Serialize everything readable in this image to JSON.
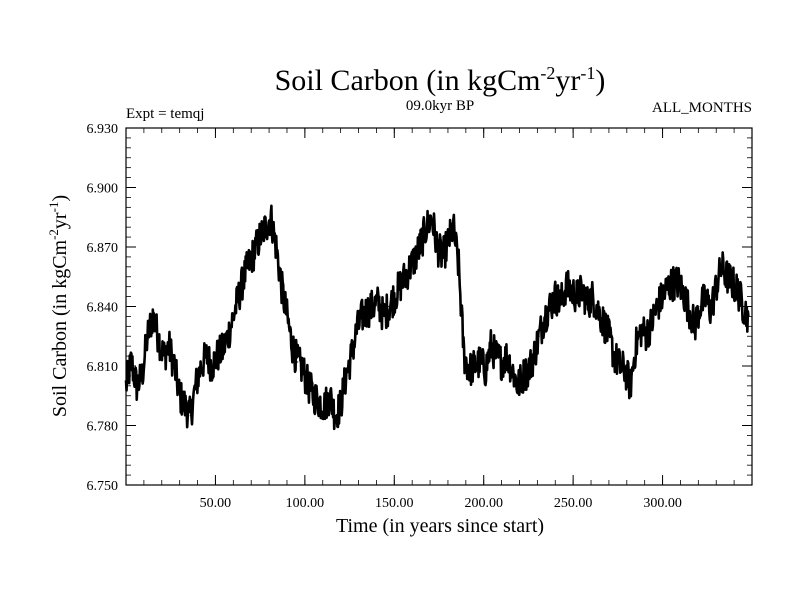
{
  "chart_data": {
    "type": "line",
    "title": {
      "main": "Soil Carbon (in kgCm",
      "sup1": "-2",
      "mid": "yr",
      "sup2": "-1",
      "end": ")"
    },
    "subtitle_left": "Expt = temqj",
    "subtitle_center": "09.0kyr BP",
    "subtitle_right": "ALL_MONTHS",
    "xlabel": "Time (in years since start)",
    "ylabel": {
      "main": "Soil Carbon (in kgCm",
      "sup1": "-2",
      "mid": "yr",
      "sup2": "-1",
      "end": ")"
    },
    "xlim": [
      0,
      350
    ],
    "ylim": [
      6.75,
      6.93
    ],
    "x_ticks": [
      50,
      100,
      150,
      200,
      250,
      300
    ],
    "x_tick_labels": [
      "50.00",
      "100.00",
      "150.00",
      "200.00",
      "250.00",
      "300.00"
    ],
    "y_ticks": [
      6.75,
      6.78,
      6.81,
      6.84,
      6.87,
      6.9,
      6.93
    ],
    "y_tick_labels": [
      "6.750",
      "6.780",
      "6.810",
      "6.840",
      "6.870",
      "6.900",
      "6.930"
    ],
    "grid": false,
    "line_color": "#000000",
    "series": [
      {
        "x": [
          0,
          3,
          6,
          9,
          12,
          15,
          18,
          21,
          24,
          27,
          30,
          33,
          36,
          39,
          42,
          45,
          48,
          51,
          54,
          57,
          60,
          63,
          66,
          69,
          72,
          75,
          78,
          81,
          84,
          87,
          90,
          93,
          96,
          99,
          102,
          105,
          108,
          111,
          114,
          117,
          120,
          123,
          126,
          129,
          132,
          135,
          138,
          141,
          144,
          147,
          150,
          153,
          156,
          159,
          162,
          165,
          168,
          171,
          174,
          177,
          180,
          183,
          186,
          189,
          192,
          195,
          198,
          201,
          204,
          207,
          210,
          213,
          216,
          219,
          222,
          225,
          228,
          231,
          234,
          237,
          240,
          243,
          246,
          249,
          252,
          255,
          258,
          261,
          264,
          267,
          270,
          273,
          276,
          279,
          282,
          285,
          288,
          291,
          294,
          297,
          300,
          303,
          306,
          309,
          312,
          315,
          318,
          321,
          324,
          327,
          330,
          333,
          336,
          339,
          342,
          345,
          348
        ],
        "y": [
          6.8,
          6.812,
          6.8,
          6.805,
          6.825,
          6.835,
          6.825,
          6.815,
          6.82,
          6.81,
          6.795,
          6.79,
          6.785,
          6.8,
          6.81,
          6.815,
          6.81,
          6.815,
          6.818,
          6.825,
          6.835,
          6.845,
          6.855,
          6.862,
          6.868,
          6.875,
          6.88,
          6.885,
          6.87,
          6.85,
          6.835,
          6.82,
          6.812,
          6.808,
          6.8,
          6.795,
          6.792,
          6.79,
          6.795,
          6.785,
          6.79,
          6.805,
          6.815,
          6.828,
          6.835,
          6.838,
          6.84,
          6.842,
          6.835,
          6.84,
          6.845,
          6.85,
          6.855,
          6.86,
          6.865,
          6.872,
          6.88,
          6.885,
          6.87,
          6.865,
          6.872,
          6.88,
          6.86,
          6.815,
          6.808,
          6.81,
          6.812,
          6.808,
          6.82,
          6.815,
          6.812,
          6.815,
          6.808,
          6.8,
          6.805,
          6.808,
          6.815,
          6.825,
          6.835,
          6.84,
          6.845,
          6.842,
          6.85,
          6.848,
          6.845,
          6.848,
          6.842,
          6.845,
          6.838,
          6.832,
          6.825,
          6.815,
          6.81,
          6.808,
          6.8,
          6.82,
          6.828,
          6.826,
          6.832,
          6.84,
          6.845,
          6.85,
          6.852,
          6.852,
          6.846,
          6.838,
          6.83,
          6.84,
          6.844,
          6.838,
          6.85,
          6.86,
          6.855,
          6.852,
          6.848,
          6.84,
          6.835
        ]
      }
    ]
  }
}
